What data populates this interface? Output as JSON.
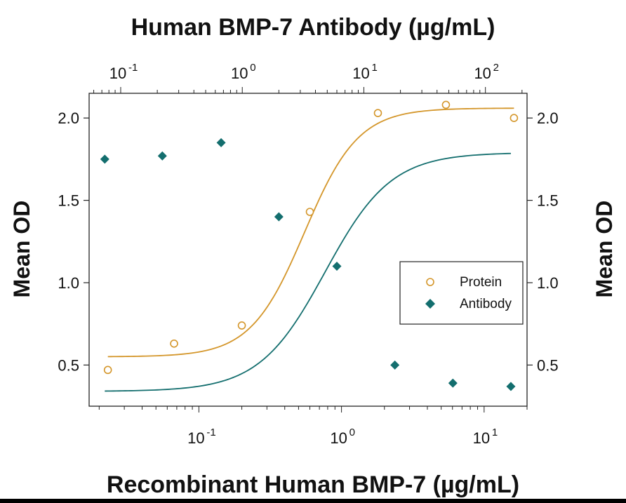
{
  "chart_data": {
    "type": "scatter",
    "top_title": "Human BMP-7 Antibody (µg/mL)",
    "bottom_title": "Recombinant Human BMP-7 (µg/mL)",
    "ylabel_left": "Mean OD",
    "ylabel_right": "Mean OD",
    "y_ticks": [
      "0.5",
      "1.0",
      "1.5",
      "2.0"
    ],
    "y_tick_values": [
      0.5,
      1.0,
      1.5,
      2.0
    ],
    "ylim": [
      0.25,
      2.15
    ],
    "x_bottom_scale": "log",
    "x_bottom_lim": [
      0.017,
      20
    ],
    "x_bottom_ticks": [
      {
        "value": 0.1,
        "base": "10",
        "exp": "-1"
      },
      {
        "value": 1,
        "base": "10",
        "exp": "0"
      },
      {
        "value": 10,
        "base": "10",
        "exp": "1"
      }
    ],
    "x_top_scale": "log",
    "x_top_lim": [
      0.055,
      220
    ],
    "x_top_ticks": [
      {
        "value": 0.1,
        "base": "10",
        "exp": "-1"
      },
      {
        "value": 1,
        "base": "10",
        "exp": "0"
      },
      {
        "value": 10,
        "base": "10",
        "exp": "1"
      },
      {
        "value": 100,
        "base": "10",
        "exp": "2"
      }
    ],
    "grid": false,
    "legend_position": "middle-right",
    "series": [
      {
        "name": "Protein",
        "axis": "bottom",
        "marker": "open-circle",
        "color": "#d4962a",
        "x": [
          0.023,
          0.067,
          0.2,
          0.6,
          1.8,
          5.4,
          16.2
        ],
        "y": [
          0.47,
          0.63,
          0.74,
          1.43,
          2.03,
          2.08,
          2.0
        ],
        "fit": {
          "bottom": 0.55,
          "top": 2.06,
          "ec50": 0.55,
          "hill": 2.3
        }
      },
      {
        "name": "Antibody",
        "axis": "top",
        "marker": "filled-diamond",
        "color": "#136e6e",
        "x": [
          0.074,
          0.22,
          0.67,
          2.0,
          6.0,
          18,
          54,
          162
        ],
        "y": [
          1.75,
          1.77,
          1.85,
          1.4,
          1.1,
          0.5,
          0.39,
          0.37
        ],
        "fit": {
          "bottom": 0.34,
          "top": 1.79,
          "ec50": 4.8,
          "hill": 1.6
        }
      }
    ]
  }
}
